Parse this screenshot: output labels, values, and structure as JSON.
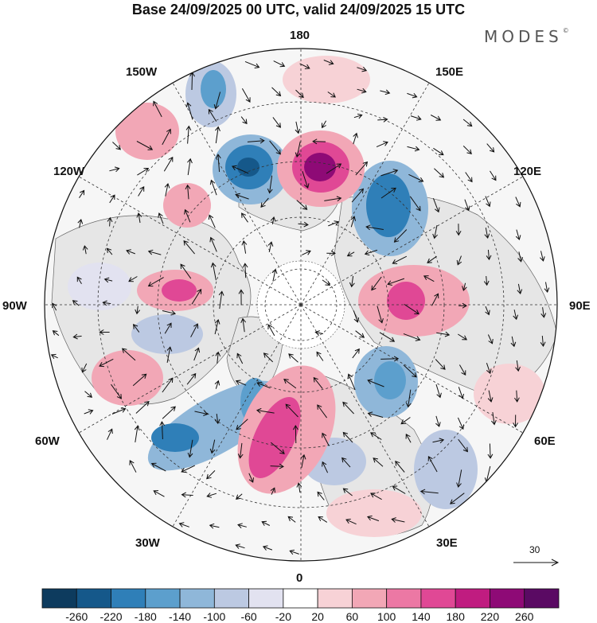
{
  "title": "Base 24/09/2025 00 UTC, valid 24/09/2025 15 UTC",
  "brand": {
    "name": "MODES",
    "mark": "©"
  },
  "longitude_labels": {
    "top": "180",
    "top_left": "150W",
    "top_right": "150E",
    "upper_left": "120W",
    "upper_right": "120E",
    "left": "90W",
    "right": "90E",
    "lower_left": "60W",
    "lower_right": "60E",
    "bottom_left": "30W",
    "bottom_right": "30E",
    "bottom": "0"
  },
  "reference_vector": {
    "value": "30"
  },
  "colorbar": {
    "colors": [
      "#0d3b5e",
      "#15588a",
      "#2f7fb8",
      "#5c9fcd",
      "#8fb7d9",
      "#bcc9e2",
      "#e2e2f0",
      "#ffffff",
      "#f7d2d6",
      "#f2a7b6",
      "#ec78a4",
      "#e04895",
      "#c01c80",
      "#8e0a76",
      "#5a0a63"
    ],
    "labels": [
      "-260",
      "-220",
      "-180",
      "-140",
      "-100",
      "-60",
      "-20",
      "20",
      "60",
      "100",
      "140",
      "180",
      "220",
      "260"
    ]
  },
  "colors": {
    "land": "#e8e8e8",
    "ocean": "#f5f5f5",
    "grid": "#333333"
  }
}
